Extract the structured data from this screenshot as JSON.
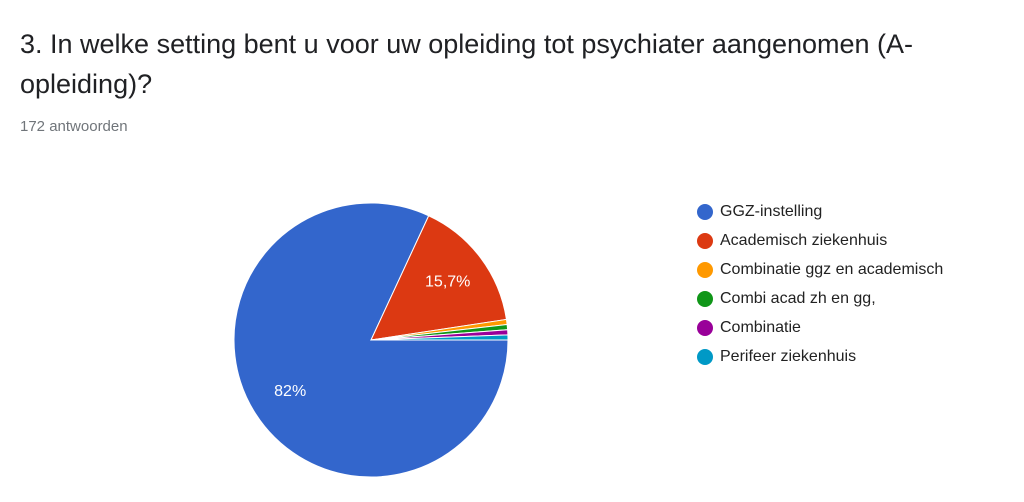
{
  "chart_data": {
    "type": "pie",
    "title": "3. In welke setting bent u voor uw opleiding tot psychiater aangenomen (A-opleiding)?",
    "subtitle": "172 antwoorden",
    "categories": [
      "GGZ-instelling",
      "Academisch ziekenhuis",
      "Combinatie ggz en academisch",
      "Combi acad zh en gg,",
      "Combinatie",
      "Perifeer ziekenhuis"
    ],
    "values": [
      82,
      15.7,
      0.6,
      0.6,
      0.6,
      0.6
    ],
    "value_labels": [
      "82%",
      "15,7%",
      null,
      null,
      null,
      null
    ],
    "colors": [
      "#3366cc",
      "#dc3912",
      "#ff9900",
      "#109618",
      "#990099",
      "#0099c6"
    ],
    "start_angle": 90,
    "legend": "right"
  }
}
